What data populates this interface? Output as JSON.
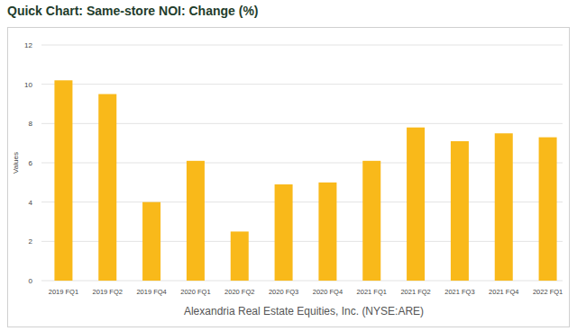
{
  "chart_data": {
    "type": "bar",
    "title": "Quick Chart: Same-store NOI: Change (%)",
    "x_label": "Alexandria Real Estate Equities, Inc. (NYSE:ARE)",
    "y_label": "Values",
    "categories": [
      "2019 FQ1",
      "2019 FQ2",
      "2019 FQ4",
      "2020 FQ1",
      "2020 FQ2",
      "2020 FQ3",
      "2020 FQ4",
      "2021 FQ1",
      "2021 FQ2",
      "2021 FQ3",
      "2021 FQ4",
      "2022 FQ1"
    ],
    "values": [
      10.2,
      9.5,
      4.0,
      6.1,
      2.5,
      4.9,
      5.0,
      6.1,
      7.8,
      7.1,
      7.5,
      7.3
    ],
    "color": "#f9b91a",
    "ylim": [
      0,
      12
    ],
    "yticks": [
      0,
      2,
      4,
      6,
      8,
      10,
      12
    ],
    "grid": true
  }
}
